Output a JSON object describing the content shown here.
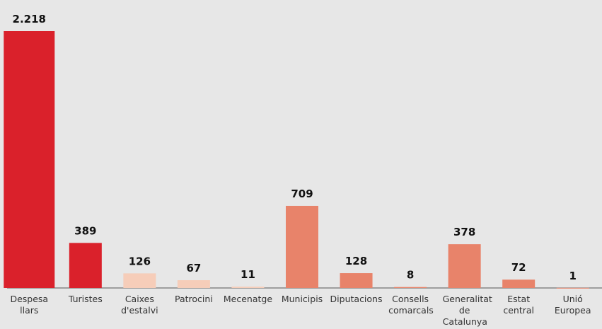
{
  "chart_data": {
    "type": "bar",
    "categories": [
      "Despesa llars",
      "Turistes",
      "Caixes d'estalvi",
      "Patrocini",
      "Mecenatge",
      "Municipis",
      "Diputacions",
      "Consells comarcals",
      "Generalitat de Catalunya",
      "Estat central",
      "Unió Europea"
    ],
    "values": [
      2218,
      389,
      126,
      67,
      11,
      709,
      128,
      8,
      378,
      72,
      1
    ],
    "value_labels": [
      "2.218",
      "389",
      "126",
      "67",
      "11",
      "709",
      "128",
      "8",
      "378",
      "72",
      "1"
    ],
    "colors": [
      "#da212b",
      "#da212b",
      "#f6cdb9",
      "#f6cdb9",
      "#f6cdb9",
      "#e8836a",
      "#e8836a",
      "#e8836a",
      "#e8836a",
      "#e8836a",
      "#e8836a"
    ]
  }
}
